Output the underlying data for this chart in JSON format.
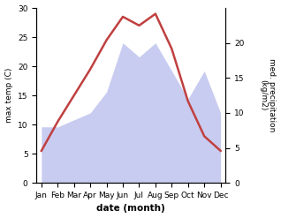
{
  "months": [
    "Jan",
    "Feb",
    "Mar",
    "Apr",
    "May",
    "Jun",
    "Jul",
    "Aug",
    "Sep",
    "Oct",
    "Nov",
    "Dec"
  ],
  "temperature": [
    5.5,
    10.5,
    15.0,
    19.5,
    24.5,
    28.5,
    27.0,
    29.0,
    23.0,
    14.0,
    8.0,
    5.5
  ],
  "precipitation": [
    8,
    8,
    9,
    10,
    13,
    20,
    18,
    20,
    16,
    12,
    16,
    10
  ],
  "temp_color": "#c04040",
  "precip_fill_color": "#c8ccf0",
  "title": "",
  "xlabel": "date (month)",
  "ylabel_left": "max temp (C)",
  "ylabel_right": "med. precipitation\n(kg/m2)",
  "ylim_left": [
    0,
    30
  ],
  "ylim_right": [
    0,
    25
  ],
  "yticks_left": [
    0,
    5,
    10,
    15,
    20,
    25,
    30
  ],
  "yticks_right": [
    0,
    5,
    10,
    15,
    20
  ],
  "bg_color": "#ffffff"
}
